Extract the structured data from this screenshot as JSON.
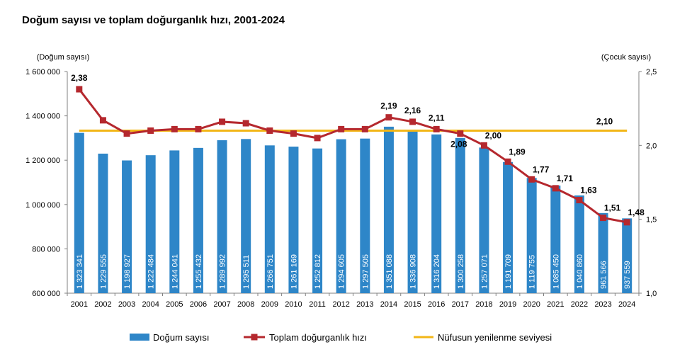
{
  "title": "Doğum sayısı ve toplam doğurganlık hızı, 2001-2024",
  "colors": {
    "bars": "#2E86C8",
    "tfr_line": "#B5282E",
    "replacement_line": "#F2B617",
    "axis": "#808080"
  },
  "chart_data": {
    "type": "bar",
    "categories": [
      "2001",
      "2002",
      "2003",
      "2004",
      "2005",
      "2006",
      "2007",
      "2008",
      "2009",
      "2010",
      "2011",
      "2012",
      "2013",
      "2014",
      "2015",
      "2016",
      "2017",
      "2018",
      "2019",
      "2020",
      "2021",
      "2022",
      "2023",
      "2024"
    ],
    "y_left_label": "(Doğum sayısı)",
    "y_right_label": "(Çocuk sayısı)",
    "y_left_range": [
      600000,
      1600000
    ],
    "y_left_ticks": [
      600000,
      800000,
      1000000,
      1200000,
      1400000,
      1600000
    ],
    "y_left_tick_labels": [
      "600 000",
      "800 000",
      "1 000 000",
      "1 200 000",
      "1 400 000",
      "1 600 000"
    ],
    "y_right_range": [
      1.0,
      2.5
    ],
    "y_right_ticks": [
      1.0,
      1.5,
      2.0,
      2.5
    ],
    "y_right_tick_labels": [
      "1,0",
      "1,5",
      "2,0",
      "2,5"
    ],
    "grid": false,
    "legend_position": "bottom",
    "series": [
      {
        "name": "Doğum sayısı",
        "type": "bar",
        "axis": "left",
        "values": [
          1323341,
          1229555,
          1198927,
          1222484,
          1244041,
          1255432,
          1289992,
          1295511,
          1266751,
          1261169,
          1252812,
          1294605,
          1297505,
          1351088,
          1336908,
          1316204,
          1300258,
          1257071,
          1191709,
          1119755,
          1085450,
          1040860,
          961566,
          937559
        ],
        "labels": [
          "1 323 341",
          "1 229 555",
          "1 198 927",
          "1 222 484",
          "1 244 041",
          "1 255 432",
          "1 289 992",
          "1 295 511",
          "1 266 751",
          "1 261 169",
          "1 252 812",
          "1 294 605",
          "1 297 505",
          "1 351 088",
          "1 336 908",
          "1 316 204",
          "1 300 258",
          "1 257 071",
          "1 191 709",
          "1 119 755",
          "1 085 450",
          "1 040 860",
          "961 566",
          "937 559"
        ]
      },
      {
        "name": "Toplam doğurganlık hızı",
        "type": "line",
        "axis": "right",
        "values": [
          2.38,
          2.17,
          2.08,
          2.1,
          2.11,
          2.11,
          2.16,
          2.15,
          2.1,
          2.08,
          2.05,
          2.11,
          2.11,
          2.19,
          2.16,
          2.11,
          2.08,
          2.0,
          1.89,
          1.77,
          1.71,
          1.63,
          1.51,
          1.48
        ],
        "labels": [
          "2,38",
          "",
          "",
          "",
          "",
          "",
          "",
          "",
          "",
          "",
          "",
          "",
          "",
          "2,19",
          "2,16",
          "2,11",
          "2,08",
          "2,00",
          "1,89",
          "1,77",
          "1,71",
          "1,63",
          "1,51",
          "1,48"
        ]
      },
      {
        "name": "Nüfusun yenilenme seviyesi",
        "type": "line",
        "axis": "right",
        "values": [
          2.1,
          2.1,
          2.1,
          2.1,
          2.1,
          2.1,
          2.1,
          2.1,
          2.1,
          2.1,
          2.1,
          2.1,
          2.1,
          2.1,
          2.1,
          2.1,
          2.1,
          2.1,
          2.1,
          2.1,
          2.1,
          2.1,
          2.1,
          2.1
        ],
        "label": "2,10"
      }
    ]
  }
}
